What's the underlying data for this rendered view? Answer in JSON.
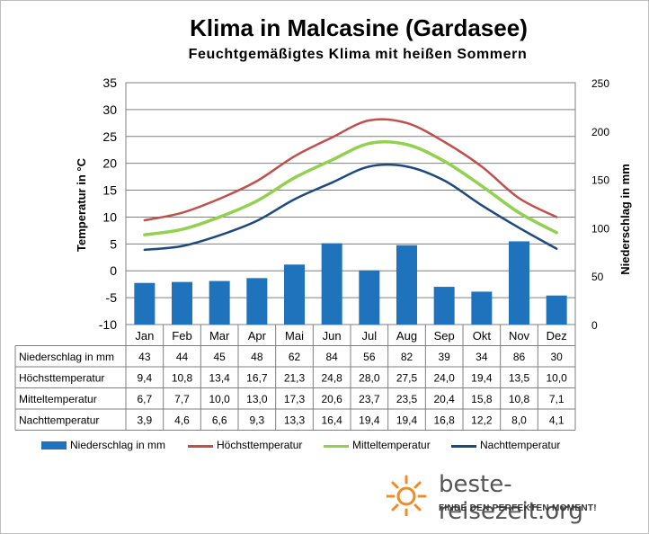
{
  "title": "Klima in Malcasine (Gardasee)",
  "subtitle": "Feuchtgemäßigtes Klima mit heißen Sommern",
  "colors": {
    "bar": "#1f73bd",
    "max": "#c0504d",
    "mean": "#92d050",
    "night": "#1f497d",
    "logo_sun": "#f08c28"
  },
  "chart_data": {
    "type": "bar+line",
    "categories": [
      "Jan",
      "Feb",
      "Mar",
      "Apr",
      "Mai",
      "Jun",
      "Jul",
      "Aug",
      "Sep",
      "Okt",
      "Nov",
      "Dez"
    ],
    "y_left": {
      "label": "Temperatur in °C",
      "range": [
        -10,
        35
      ],
      "ticks": [
        35,
        30,
        25,
        20,
        15,
        10,
        5,
        0,
        -5,
        -10
      ]
    },
    "y_right": {
      "label": "Niederschlag in mm",
      "range": [
        0,
        250
      ],
      "ticks": [
        250,
        200,
        150,
        100,
        50,
        0
      ]
    },
    "grid": true,
    "series": [
      {
        "name": "Niederschlag in mm",
        "type": "bar",
        "axis": "right",
        "values": [
          43,
          44,
          45,
          48,
          62,
          84,
          56,
          82,
          39,
          34,
          86,
          30
        ]
      },
      {
        "name": "Höchsttemperatur",
        "type": "line",
        "axis": "left",
        "values": [
          9.4,
          10.8,
          13.4,
          16.7,
          21.3,
          24.8,
          28.0,
          27.5,
          24.0,
          19.4,
          13.5,
          10.0
        ]
      },
      {
        "name": "Mitteltemperatur",
        "type": "line",
        "axis": "left",
        "values": [
          6.7,
          7.7,
          10.0,
          13.0,
          17.3,
          20.6,
          23.7,
          23.5,
          20.4,
          15.8,
          10.8,
          7.1
        ]
      },
      {
        "name": "Nachttemperatur",
        "type": "line",
        "axis": "left",
        "values": [
          3.9,
          4.6,
          6.6,
          9.3,
          13.3,
          16.4,
          19.4,
          19.4,
          16.8,
          12.2,
          8.0,
          4.1
        ]
      }
    ],
    "table": [
      {
        "label": "Niederschlag in mm",
        "cells": [
          "43",
          "44",
          "45",
          "48",
          "62",
          "84",
          "56",
          "82",
          "39",
          "34",
          "86",
          "30"
        ]
      },
      {
        "label": "Höchsttemperatur",
        "cells": [
          "9,4",
          "10,8",
          "13,4",
          "16,7",
          "21,3",
          "24,8",
          "28,0",
          "27,5",
          "24,0",
          "19,4",
          "13,5",
          "10,0"
        ]
      },
      {
        "label": "Mitteltemperatur",
        "cells": [
          "6,7",
          "7,7",
          "10,0",
          "13,0",
          "17,3",
          "20,6",
          "23,7",
          "23,5",
          "20,4",
          "15,8",
          "10,8",
          "7,1"
        ]
      },
      {
        "label": "Nachttemperatur",
        "cells": [
          "3,9",
          "4,6",
          "6,6",
          "9,3",
          "13,3",
          "16,4",
          "19,4",
          "19,4",
          "16,8",
          "12,2",
          "8,0",
          "4,1"
        ]
      }
    ],
    "legend": [
      "Niederschlag in mm",
      "Höchsttemperatur",
      "Mitteltemperatur",
      "Nachttemperatur"
    ],
    "legend_position": "bottom"
  },
  "logo": {
    "text": "beste-reisezeit.org",
    "slogan": "FINDE DEN PERFEKTEN MOMENT!",
    "icon": "sun-icon"
  }
}
